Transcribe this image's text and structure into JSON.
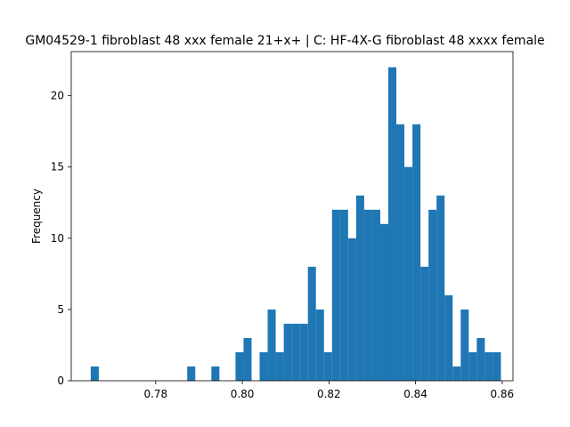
{
  "chart_data": {
    "type": "bar",
    "title": "GM04529-1 fibroblast 48 xxx female 21+x+ | C: HF-4X-G fibroblast 48 xxxx female",
    "xlabel": "",
    "ylabel": "Frequency",
    "xlim": [
      0.7605,
      0.8625
    ],
    "ylim": [
      0,
      23.1
    ],
    "xticks": [
      0.78,
      0.8,
      0.82,
      0.84,
      0.86
    ],
    "xtick_labels": [
      "0.78",
      "0.80",
      "0.82",
      "0.84",
      "0.86"
    ],
    "yticks": [
      0,
      5,
      10,
      15,
      20
    ],
    "ytick_labels": [
      "0",
      "5",
      "10",
      "15",
      "20"
    ],
    "bar_color": "#1f77b4",
    "grid": false,
    "bins": {
      "start": 0.765,
      "width": 0.001857,
      "counts": [
        1,
        0,
        0,
        0,
        0,
        0,
        0,
        0,
        0,
        0,
        0,
        0,
        1,
        0,
        0,
        1,
        0,
        0,
        2,
        3,
        0,
        2,
        5,
        2,
        4,
        4,
        4,
        8,
        5,
        2,
        12,
        12,
        10,
        13,
        12,
        12,
        11,
        22,
        18,
        15,
        18,
        8,
        12,
        13,
        6,
        1,
        5,
        2,
        3,
        2,
        2
      ]
    }
  }
}
